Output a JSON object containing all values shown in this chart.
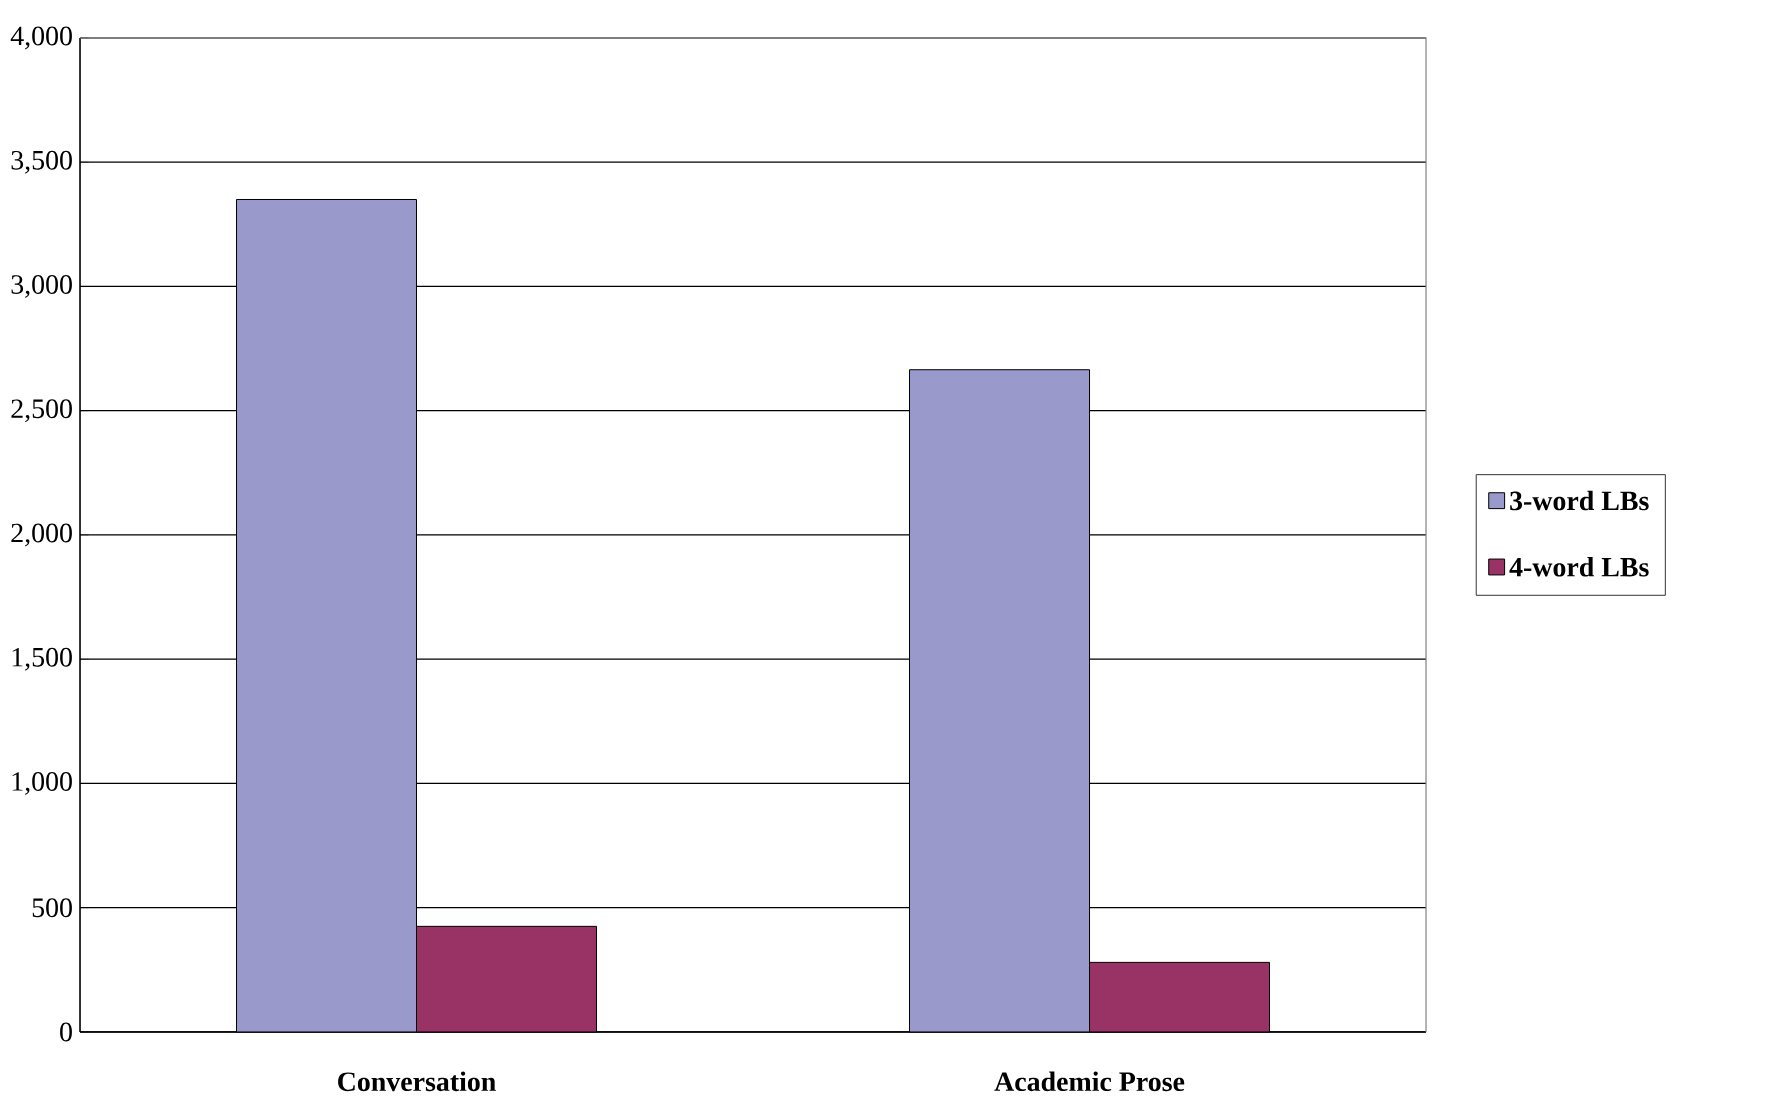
{
  "chart_data": {
    "type": "bar",
    "categories": [
      "Conversation",
      "Academic Prose"
    ],
    "series": [
      {
        "name": "3-word LBs",
        "color": "#9999cc",
        "values": [
          3350,
          2665
        ]
      },
      {
        "name": "4-word LBs",
        "color": "#993366",
        "values": [
          425,
          280
        ]
      }
    ],
    "ylim": [
      0,
      4000
    ],
    "yticks": [
      0,
      {
        "value": 500,
        "label": "500"
      },
      {
        "value": 1000,
        "label": "1,000"
      },
      {
        "value": 1500,
        "label": "1,500"
      },
      {
        "value": 2000,
        "label": "2,000"
      },
      {
        "value": 2500,
        "label": "2,500"
      },
      {
        "value": 3000,
        "label": "3,000"
      },
      {
        "value": 3500,
        "label": "3,500"
      },
      {
        "value": 4000,
        "label": "4,000"
      }
    ],
    "grid": "y",
    "legend": "right"
  }
}
